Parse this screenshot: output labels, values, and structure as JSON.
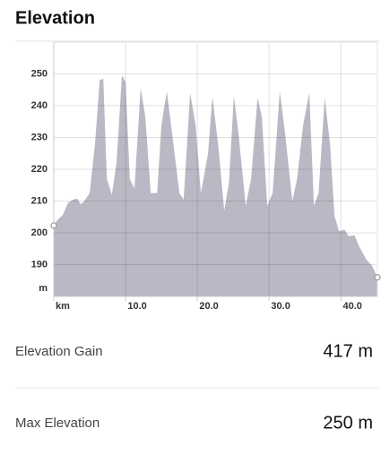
{
  "title": "Elevation",
  "chart_data": {
    "type": "area",
    "x_label": "km",
    "y_label": "m",
    "x": [
      0,
      0.5,
      1.25,
      2,
      2.75,
      3.25,
      3.75,
      4.25,
      5,
      5.75,
      6.4,
      6.9,
      7.4,
      8.1,
      8.75,
      9.5,
      10,
      10.6,
      11.25,
      12.1,
      12.75,
      13.5,
      14.4,
      15,
      15.75,
      16.5,
      17.5,
      18.1,
      19,
      19.75,
      20.5,
      21.5,
      22.1,
      22.9,
      23.75,
      24.4,
      25.1,
      25.75,
      26.75,
      27.5,
      28.4,
      29,
      29.75,
      30.5,
      31.5,
      32.25,
      33.25,
      33.9,
      34.75,
      35.6,
      36.25,
      36.9,
      37.75,
      38.5,
      39.1,
      39.75,
      40.5,
      41.1,
      41.9,
      42.6,
      43.6,
      44.4,
      45.1
    ],
    "values": [
      202.3,
      204,
      205.6,
      209.5,
      210.5,
      210.8,
      209,
      210,
      212.5,
      228,
      248,
      248.5,
      217,
      212,
      222,
      249.5,
      247.5,
      217,
      214,
      245.5,
      236.5,
      212.5,
      212.5,
      234,
      244.5,
      231,
      212.5,
      210.5,
      244,
      234,
      212.5,
      225,
      242.8,
      228,
      207,
      215.5,
      243,
      231,
      208.5,
      217,
      242.5,
      236.5,
      208.5,
      212.5,
      244.5,
      231,
      210,
      217,
      234,
      244,
      208.5,
      212.5,
      242.5,
      228,
      205.5,
      200.5,
      201,
      199,
      199.2,
      195.5,
      191.5,
      189.5,
      186
    ],
    "color": "#b9b8c4",
    "xlim": [
      0,
      45.1
    ],
    "ylim": [
      180,
      260
    ],
    "xticks": [
      {
        "value": 10,
        "label": "10.0"
      },
      {
        "value": 20,
        "label": "20.0"
      },
      {
        "value": 30,
        "label": "30.0"
      },
      {
        "value": 40,
        "label": "40.0"
      }
    ],
    "yticks": [
      190,
      200,
      210,
      220,
      230,
      240,
      250
    ],
    "grid": true
  },
  "stats": [
    {
      "label": "Elevation Gain",
      "value": "417 m"
    },
    {
      "label": "Max Elevation",
      "value": "250 m"
    }
  ]
}
